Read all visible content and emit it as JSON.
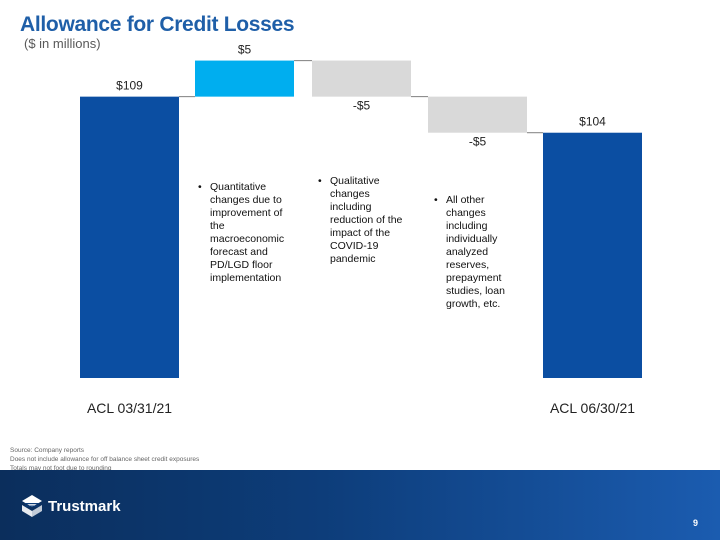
{
  "header": {
    "title": "Allowance for Credit Losses",
    "subtitle": "($ in millions)"
  },
  "chart_data": {
    "type": "bar",
    "subtype": "waterfall",
    "categories": [
      "ACL 03/31/21",
      "",
      "",
      "",
      "ACL 06/30/21"
    ],
    "values": [
      109,
      5,
      -5,
      -5,
      104
    ],
    "value_labels": [
      "$109",
      "$5",
      "-$5",
      "-$5",
      "$104"
    ],
    "kinds": [
      "total",
      "delta",
      "delta",
      "delta",
      "total"
    ],
    "colors": {
      "total": "#0b4ea2",
      "increase": "#00aeef",
      "decrease": "#d9d9d9",
      "connector": "#7f7f7f"
    },
    "annotations": [
      "Quantitative changes due to improvement of the macroeconomic forecast and PD/LGD floor implementation",
      "Qualitative changes including reduction of the impact of the COVID-19 pandemic",
      "All other changes including individually analyzed reserves, prepayment studies, loan growth, etc."
    ],
    "ylim": [
      0,
      115
    ],
    "grid": false,
    "legend": "none"
  },
  "footnotes": [
    "Source: Company reports",
    "Does not include allowance for off balance sheet credit exposures",
    "Totals may not foot due to rounding"
  ],
  "footer": {
    "logo_text": "Trustmark",
    "page_number": "9"
  }
}
